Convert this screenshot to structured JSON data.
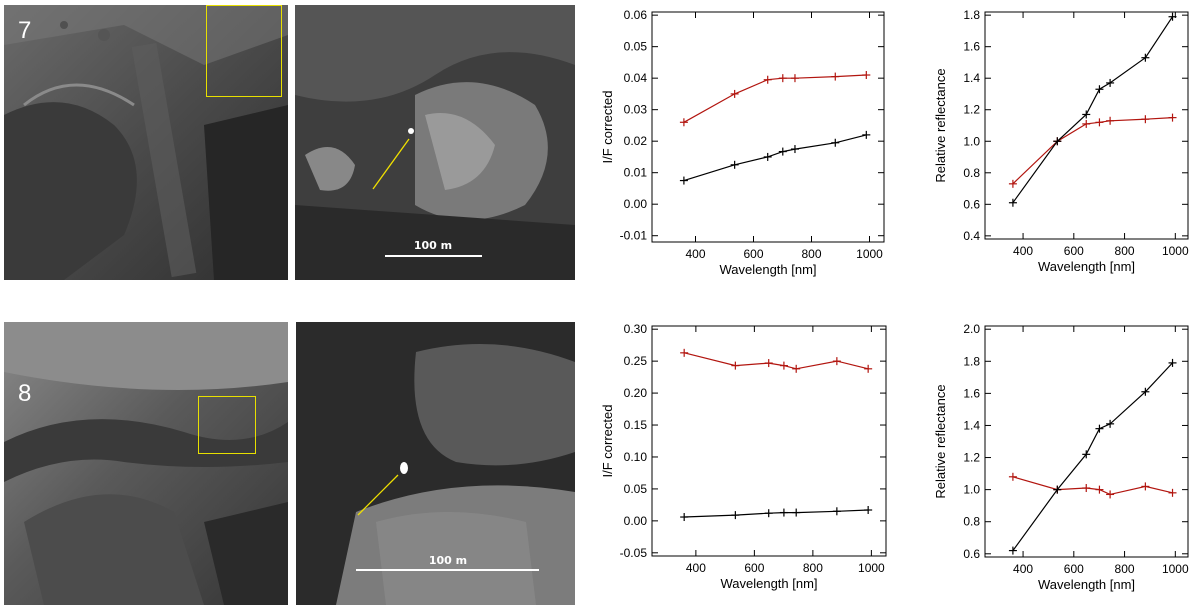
{
  "panels": [
    {
      "number": "7",
      "scale_bar_label": "100 m"
    },
    {
      "number": "8",
      "scale_bar_label": "100 m"
    }
  ],
  "colors": {
    "highlight_box": "#e8e000",
    "arrow": "#f0e000",
    "series_red": "#b2150f",
    "series_black": "#000000"
  },
  "chart_data": [
    {
      "type": "line",
      "panel": "7",
      "xlabel": "Wavelength [nm]",
      "ylabel": "I/F corrected",
      "xlim": [
        250,
        1050
      ],
      "ylim": [
        -0.012,
        0.061
      ],
      "xticks": [
        400,
        600,
        800,
        1000
      ],
      "yticks": [
        -0.01,
        0.0,
        0.01,
        0.02,
        0.03,
        0.04,
        0.05,
        0.06
      ],
      "ytick_labels": [
        "-0.01",
        "0.00",
        "0.01",
        "0.02",
        "0.03",
        "0.04",
        "0.05",
        "0.06"
      ],
      "series": [
        {
          "color": "#b2150f",
          "x": [
            360,
            535,
            649,
            701,
            743,
            882,
            989
          ],
          "y": [
            0.026,
            0.035,
            0.0395,
            0.04,
            0.04,
            0.0405,
            0.041
          ]
        },
        {
          "color": "#000000",
          "x": [
            360,
            535,
            649,
            701,
            743,
            882,
            989
          ],
          "y": [
            0.0075,
            0.0125,
            0.015,
            0.0167,
            0.0175,
            0.0195,
            0.022
          ]
        }
      ]
    },
    {
      "type": "line",
      "panel": "7",
      "xlabel": "Wavelength [nm]",
      "ylabel": "Relative reflectance",
      "xlim": [
        250,
        1050
      ],
      "ylim": [
        0.38,
        1.82
      ],
      "xticks": [
        400,
        600,
        800,
        1000
      ],
      "yticks": [
        0.4,
        0.6,
        0.8,
        1.0,
        1.2,
        1.4,
        1.6,
        1.8
      ],
      "ytick_labels": [
        "0.4",
        "0.6",
        "0.8",
        "1.0",
        "1.2",
        "1.4",
        "1.6",
        "1.8"
      ],
      "series": [
        {
          "color": "#b2150f",
          "x": [
            360,
            535,
            649,
            701,
            743,
            882,
            989
          ],
          "y": [
            0.73,
            1.0,
            1.11,
            1.12,
            1.13,
            1.14,
            1.15
          ]
        },
        {
          "color": "#000000",
          "x": [
            360,
            535,
            649,
            701,
            743,
            882,
            989
          ],
          "y": [
            0.61,
            1.0,
            1.17,
            1.33,
            1.37,
            1.53,
            1.79
          ]
        }
      ]
    },
    {
      "type": "line",
      "panel": "8",
      "xlabel": "Wavelength [nm]",
      "ylabel": "I/F corrected",
      "xlim": [
        250,
        1050
      ],
      "ylim": [
        -0.055,
        0.305
      ],
      "xticks": [
        400,
        600,
        800,
        1000
      ],
      "yticks": [
        -0.05,
        0.0,
        0.05,
        0.1,
        0.15,
        0.2,
        0.25,
        0.3
      ],
      "ytick_labels": [
        "-0.05",
        "0.00",
        "0.05",
        "0.10",
        "0.15",
        "0.20",
        "0.25",
        "0.30"
      ],
      "series": [
        {
          "color": "#b2150f",
          "x": [
            360,
            535,
            649,
            701,
            743,
            882,
            989
          ],
          "y": [
            0.263,
            0.243,
            0.247,
            0.243,
            0.238,
            0.25,
            0.238
          ]
        },
        {
          "color": "#000000",
          "x": [
            360,
            535,
            649,
            701,
            743,
            882,
            989
          ],
          "y": [
            0.006,
            0.009,
            0.012,
            0.013,
            0.013,
            0.015,
            0.017
          ]
        }
      ]
    },
    {
      "type": "line",
      "panel": "8",
      "xlabel": "Wavelength [nm]",
      "ylabel": "Relative reflectance",
      "xlim": [
        250,
        1050
      ],
      "ylim": [
        0.58,
        2.02
      ],
      "xticks": [
        400,
        600,
        800,
        1000
      ],
      "yticks": [
        0.6,
        0.8,
        1.0,
        1.2,
        1.4,
        1.6,
        1.8,
        2.0
      ],
      "ytick_labels": [
        "0.6",
        "0.8",
        "1.0",
        "1.2",
        "1.4",
        "1.6",
        "1.8",
        "2.0"
      ],
      "series": [
        {
          "color": "#b2150f",
          "x": [
            360,
            535,
            649,
            701,
            743,
            882,
            989
          ],
          "y": [
            1.08,
            1.0,
            1.01,
            1.0,
            0.97,
            1.02,
            0.98
          ]
        },
        {
          "color": "#000000",
          "x": [
            360,
            535,
            649,
            701,
            743,
            882,
            989
          ],
          "y": [
            0.62,
            1.0,
            1.22,
            1.38,
            1.41,
            1.61,
            1.79
          ]
        }
      ]
    }
  ]
}
